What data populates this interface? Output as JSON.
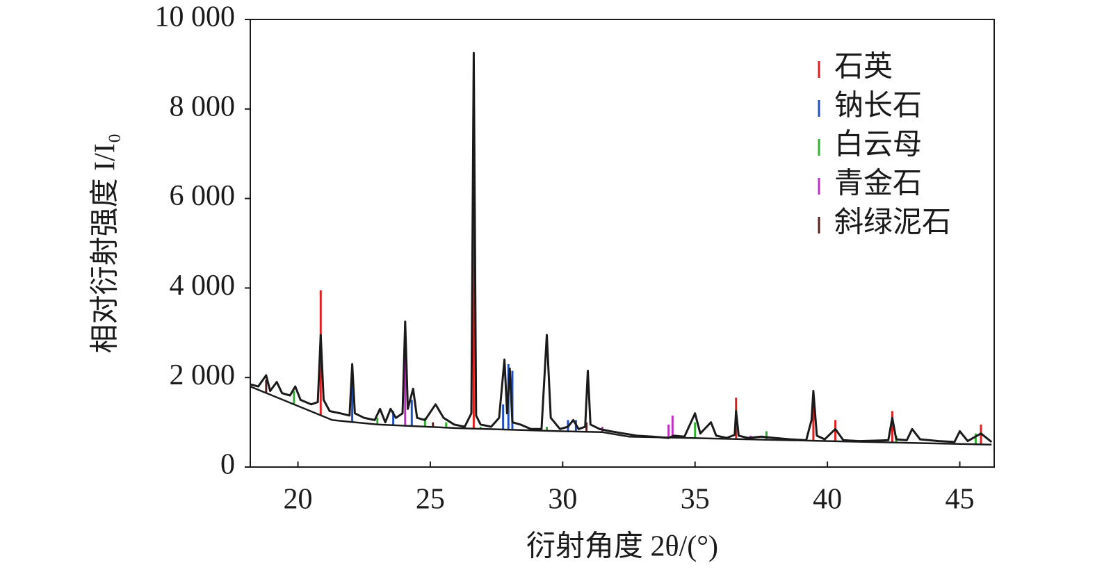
{
  "chart_data": {
    "type": "line",
    "x_label": "衍射角度 2θ/(°)",
    "y_label": "相对衍射强度 I/I₀",
    "xlim": [
      18.2,
      46.3
    ],
    "ylim": [
      0,
      10000
    ],
    "xticks": [
      20,
      25,
      30,
      35,
      40,
      45
    ],
    "yticks": [
      0,
      {
        "value": 2000,
        "label": "2 000"
      },
      {
        "value": 4000,
        "label": "4 000"
      },
      {
        "value": 6000,
        "label": "6 000"
      },
      {
        "value": 8000,
        "label": "8 000"
      },
      {
        "value": 10000,
        "label": "10 000"
      }
    ],
    "legend": "upper right",
    "series": [
      {
        "color": "#1a1a1a",
        "x": [
          18.2,
          18.5,
          18.8,
          18.95,
          19.2,
          19.4,
          19.7,
          19.9,
          20.1,
          20.5,
          20.75,
          20.86,
          20.97,
          21.2,
          21.6,
          21.95,
          22.05,
          22.15,
          22.5,
          22.9,
          23.1,
          23.3,
          23.5,
          23.7,
          23.95,
          24.05,
          24.15,
          24.35,
          24.5,
          24.8,
          25.2,
          25.5,
          25.9,
          26.3,
          26.55,
          26.64,
          26.73,
          26.9,
          27.3,
          27.6,
          27.8,
          27.9,
          28.0,
          28.1,
          28.4,
          28.8,
          29.2,
          29.4,
          29.55,
          29.9,
          30.2,
          30.4,
          30.6,
          30.85,
          30.95,
          31.05,
          31.4,
          31.8,
          32.3,
          32.8,
          33.4,
          34.0,
          34.2,
          34.6,
          35.0,
          35.2,
          35.6,
          35.8,
          36.2,
          36.5,
          36.55,
          36.65,
          37.0,
          37.5,
          38.0,
          38.6,
          39.2,
          39.4,
          39.47,
          39.6,
          39.9,
          40.3,
          40.6,
          41.2,
          41.8,
          42.3,
          42.45,
          42.6,
          43.0,
          43.2,
          43.5,
          44.2,
          44.8,
          45.0,
          45.3,
          45.8,
          46.2
        ],
        "values": [
          1850,
          1800,
          2050,
          1700,
          1900,
          1650,
          1600,
          1800,
          1500,
          1400,
          1450,
          2950,
          1500,
          1250,
          1200,
          1150,
          2300,
          1200,
          1100,
          1050,
          1300,
          1000,
          1300,
          1100,
          1200,
          3250,
          1300,
          1750,
          1100,
          1050,
          1400,
          1100,
          950,
          900,
          1200,
          9250,
          1150,
          950,
          900,
          1100,
          2400,
          1200,
          2200,
          1000,
          950,
          850,
          850,
          2950,
          1100,
          850,
          900,
          1050,
          850,
          900,
          2150,
          950,
          850,
          800,
          750,
          700,
          680,
          650,
          700,
          680,
          1200,
          750,
          1000,
          700,
          650,
          720,
          1250,
          700,
          650,
          680,
          650,
          620,
          600,
          1050,
          1700,
          700,
          620,
          850,
          600,
          580,
          590,
          600,
          1100,
          620,
          600,
          850,
          620,
          580,
          560,
          800,
          580,
          750,
          560
        ]
      },
      {
        "color": "#1a1a1a",
        "x": [
          18.2,
          21.3,
          23,
          26,
          30,
          31.5,
          32.5,
          40,
          46.2
        ],
        "values": [
          1800,
          1050,
          950,
          870,
          800,
          780,
          680,
          580,
          500
        ]
      }
    ],
    "reference_phases": [
      {
        "name": "石英",
        "color": "#e02020",
        "x": [
          20.86,
          26.64,
          36.55,
          39.47,
          40.3,
          42.45,
          45.8
        ],
        "values": [
          3950,
          8650,
          1550,
          1500,
          1050,
          1250,
          950
        ]
      },
      {
        "name": "钠长石",
        "color": "#2050c0",
        "x": [
          22.05,
          23.6,
          24.3,
          27.75,
          27.95,
          28.1,
          30.2,
          30.5
        ],
        "values": [
          2050,
          1250,
          1500,
          1400,
          2300,
          2150,
          1050,
          1050
        ]
      },
      {
        "name": "白云母",
        "color": "#30b030",
        "x": [
          19.85,
          23.0,
          24.8,
          25.6,
          26.9,
          29.4,
          35.0,
          37.7,
          42.6,
          45.6
        ],
        "values": [
          1700,
          1100,
          1100,
          1000,
          900,
          900,
          1000,
          800,
          700,
          750
        ]
      },
      {
        "name": "青金石",
        "color": "#c030c0",
        "x": [
          19.0,
          24.05,
          31.5,
          34.0,
          34.15,
          37.1
        ],
        "values": [
          1600,
          3150,
          900,
          950,
          1150,
          700
        ]
      },
      {
        "name": "斜绿泥石",
        "color": "#5a2020",
        "x": [
          18.8,
          25.1,
          30.9
        ],
        "values": [
          1950,
          1000,
          1000
        ]
      }
    ]
  }
}
